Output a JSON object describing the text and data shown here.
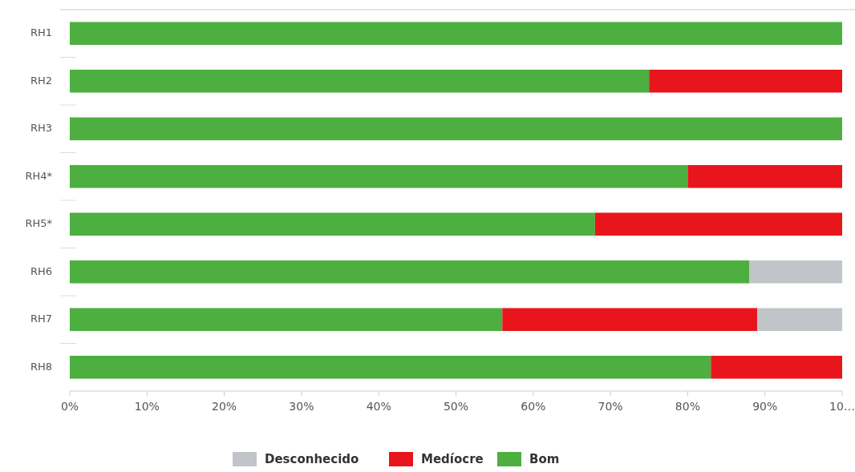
{
  "chart_data": {
    "type": "bar",
    "orientation": "horizontal",
    "stacked": true,
    "categories": [
      "RH1",
      "RH2",
      "RH3",
      "RH4*",
      "RH5*",
      "RH6",
      "RH7",
      "RH8"
    ],
    "series": [
      {
        "name": "Bom",
        "color": "#4caf3f",
        "values": [
          100,
          75,
          100,
          80,
          68,
          88,
          56,
          83
        ]
      },
      {
        "name": "Medíocre",
        "color": "#e8161c",
        "values": [
          0,
          25,
          0,
          20,
          32,
          0,
          33,
          17
        ]
      },
      {
        "name": "Desconhecido",
        "color": "#c1c5ca",
        "values": [
          0,
          0,
          0,
          0,
          0,
          12,
          11,
          0
        ]
      }
    ],
    "xlim": [
      0,
      100
    ],
    "xticks": [
      {
        "value": 0,
        "label": "0%"
      },
      {
        "value": 10,
        "label": "10%"
      },
      {
        "value": 20,
        "label": "20%"
      },
      {
        "value": 30,
        "label": "30%"
      },
      {
        "value": 40,
        "label": "40%"
      },
      {
        "value": 50,
        "label": "50%"
      },
      {
        "value": 60,
        "label": "60%"
      },
      {
        "value": 70,
        "label": "70%"
      },
      {
        "value": 80,
        "label": "80%"
      },
      {
        "value": 90,
        "label": "90%"
      },
      {
        "value": 100,
        "label": "10…"
      }
    ],
    "legend": "bottom"
  }
}
